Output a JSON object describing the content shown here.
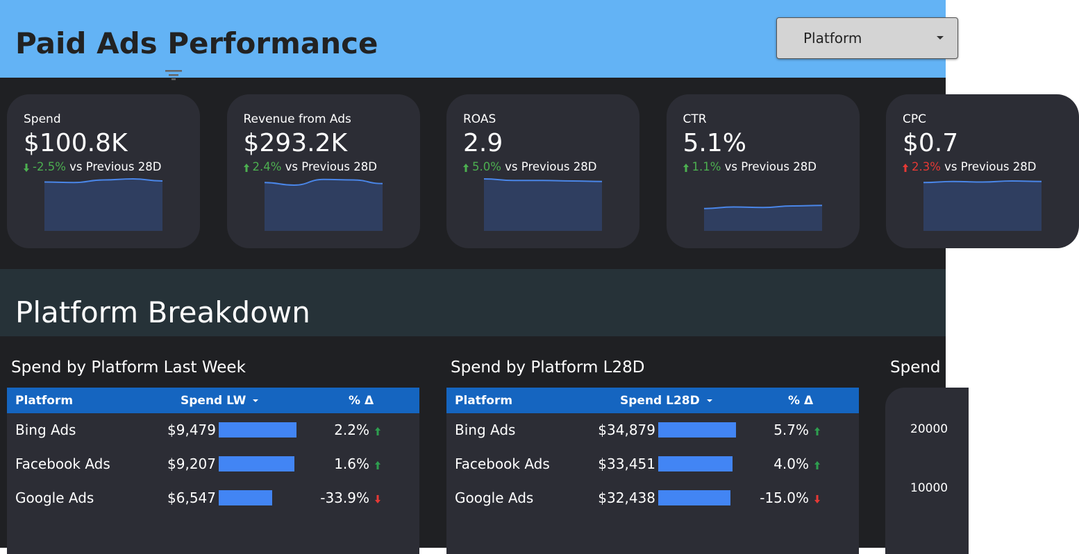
{
  "header": {
    "title": "Paid Ads Performance",
    "filter": "Platform"
  },
  "kpis": [
    {
      "label": "Spend",
      "value": "$100.8K",
      "change": "-2.5%",
      "direction": "down",
      "color": "#4caf50",
      "comparison": "vs Previous 28D",
      "trend": [
        94,
        93,
        98,
        100,
        96
      ]
    },
    {
      "label": "Revenue from Ads",
      "value": "$293.2K",
      "change": "2.4%",
      "direction": "up",
      "color": "#4caf50",
      "comparison": "vs Previous 28D",
      "trend": [
        93,
        88,
        99,
        98,
        91
      ]
    },
    {
      "label": "ROAS",
      "value": "2.9",
      "change": "5.0%",
      "direction": "up",
      "color": "#4caf50",
      "comparison": "vs Previous 28D",
      "trend": [
        100,
        97,
        97,
        96,
        95
      ]
    },
    {
      "label": "CTR",
      "value": "5.1%",
      "change": "1.1%",
      "direction": "up",
      "color": "#4caf50",
      "comparison": "vs Previous 28D",
      "trend": [
        43,
        46,
        45,
        48,
        49
      ]
    },
    {
      "label": "CPC",
      "value": "$0.7",
      "change": "2.3%",
      "direction": "up",
      "color": "#e53935",
      "comparison": "vs Previous 28D",
      "trend": [
        93,
        95,
        94,
        96,
        95
      ]
    }
  ],
  "section": {
    "title": "Platform Breakdown"
  },
  "tables": [
    {
      "title": "Spend by Platform Last Week",
      "columns": [
        "Platform",
        "Spend LW",
        "% Δ"
      ],
      "rows": [
        {
          "platform": "Bing Ads",
          "spend": {
            "value": 9479,
            "label": "$9,479"
          },
          "change": "2.2%",
          "direction": "up",
          "color": "#2e9e4f"
        },
        {
          "platform": "Facebook Ads",
          "spend": {
            "value": 9207,
            "label": "$9,207"
          },
          "change": "1.6%",
          "direction": "up",
          "color": "#2e9e4f"
        },
        {
          "platform": "Google Ads",
          "spend": {
            "value": 6547,
            "label": "$6,547"
          },
          "change": "-33.9%",
          "direction": "down",
          "color": "#e53935"
        }
      ]
    },
    {
      "title": "Spend by Platform L28D",
      "columns": [
        "Platform",
        "Spend L28D",
        "% Δ"
      ],
      "rows": [
        {
          "platform": "Bing Ads",
          "spend": {
            "value": 34879,
            "label": "$34,879"
          },
          "change": "5.7%",
          "direction": "up",
          "color": "#2e9e4f"
        },
        {
          "platform": "Facebook Ads",
          "spend": {
            "value": 33451,
            "label": "$33,451"
          },
          "change": "4.0%",
          "direction": "up",
          "color": "#2e9e4f"
        },
        {
          "platform": "Google Ads",
          "spend": {
            "value": 32438,
            "label": "$32,438"
          },
          "change": "-15.0%",
          "direction": "down",
          "color": "#e53935"
        }
      ]
    }
  ],
  "spend_chart": {
    "title": "Spend",
    "yticks": [
      10000,
      20000
    ]
  }
}
